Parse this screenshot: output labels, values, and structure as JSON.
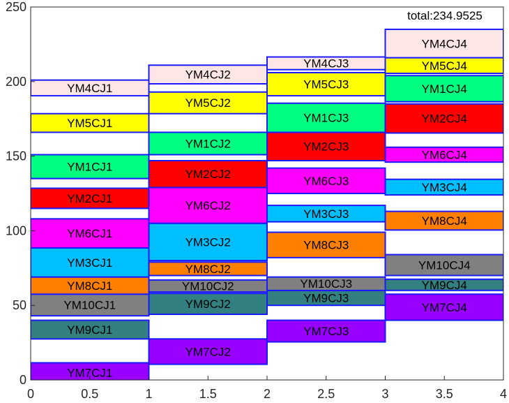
{
  "chart_data": {
    "type": "bar",
    "title": "",
    "xlabel": "",
    "ylabel": "",
    "xlim": [
      0,
      4
    ],
    "ylim": [
      0,
      250
    ],
    "xticks": [
      "0",
      "0.5",
      "1",
      "1.5",
      "2",
      "2.5",
      "3",
      "3.5",
      "4"
    ],
    "yticks": [
      "0",
      "50",
      "100",
      "150",
      "200",
      "250"
    ],
    "grid": false,
    "annotation": "total:234.9525",
    "colors": {
      "YM1": "#00ff80",
      "YM2": "#ff0000",
      "YM3": "#00bfff",
      "YM4": "#ffe6e6",
      "YM5": "#ffff00",
      "YM6": "#ff00ff",
      "YM7": "#9900ff",
      "YM8": "#ff8000",
      "YM9": "#338080",
      "YM10": "#808080",
      "edge": "#1a1aff"
    },
    "blocks": [
      {
        "label": "YM7CJ1",
        "key": "YM7",
        "x": [
          0,
          1
        ],
        "y": [
          -1.5,
          11.5
        ]
      },
      {
        "label": "YM9CJ1",
        "key": "YM9",
        "x": [
          0,
          1
        ],
        "y": [
          27.5,
          40
        ]
      },
      {
        "label": "YM10CJ1",
        "key": "YM10",
        "x": [
          0,
          1
        ],
        "y": [
          43,
          57.5
        ]
      },
      {
        "label": "YM8CJ1",
        "key": "YM8",
        "x": [
          0,
          1
        ],
        "y": [
          57.5,
          69
        ]
      },
      {
        "label": "YM3CJ1",
        "key": "YM3",
        "x": [
          0,
          1
        ],
        "y": [
          69,
          88.5
        ]
      },
      {
        "label": "YM6CJ1",
        "key": "YM6",
        "x": [
          0,
          1
        ],
        "y": [
          88.5,
          108
        ]
      },
      {
        "label": "YM2CJ1",
        "key": "YM2",
        "x": [
          0,
          1
        ],
        "y": [
          115,
          128.5
        ]
      },
      {
        "label": "YM1CJ1",
        "key": "YM1",
        "x": [
          0,
          1
        ],
        "y": [
          135,
          151
        ]
      },
      {
        "label": "YM5CJ1",
        "key": "YM5",
        "x": [
          0,
          1
        ],
        "y": [
          166,
          178.5
        ]
      },
      {
        "label": "YM4CJ1",
        "key": "YM4",
        "x": [
          0,
          1
        ],
        "y": [
          190.5,
          201
        ]
      },
      {
        "label": "YM7CJ2",
        "key": "YM7",
        "x": [
          1,
          2
        ],
        "y": [
          10.5,
          27.5
        ]
      },
      {
        "label": "YM9CJ2",
        "key": "YM9",
        "x": [
          1,
          2
        ],
        "y": [
          44,
          58
        ]
      },
      {
        "label": "YM10CJ2",
        "key": "YM10",
        "x": [
          1,
          2
        ],
        "y": [
          59,
          67
        ]
      },
      {
        "label": "YM8CJ2",
        "key": "YM8",
        "x": [
          1,
          2
        ],
        "y": [
          70,
          79
        ]
      },
      {
        "label": "YM3CJ2",
        "key": "YM3",
        "x": [
          1,
          2
        ],
        "y": [
          80,
          105
        ]
      },
      {
        "label": "YM6CJ2",
        "key": "YM6",
        "x": [
          1,
          2
        ],
        "y": [
          105,
          129
        ]
      },
      {
        "label": "YM2CJ2",
        "key": "YM2",
        "x": [
          1,
          2
        ],
        "y": [
          129,
          147
        ]
      },
      {
        "label": "YM1CJ2",
        "key": "YM1",
        "x": [
          1,
          2
        ],
        "y": [
          151,
          166
        ]
      },
      {
        "label": "YM5CJ2",
        "key": "YM5",
        "x": [
          1,
          2
        ],
        "y": [
          178.5,
          193
        ]
      },
      {
        "label": "YM4CJ2",
        "key": "YM4",
        "x": [
          1,
          2
        ],
        "y": [
          198.5,
          211
        ]
      },
      {
        "label": "YM7CJ3",
        "key": "YM7",
        "x": [
          2,
          3
        ],
        "y": [
          25.5,
          40
        ]
      },
      {
        "label": "YM9CJ3",
        "key": "YM9",
        "x": [
          2,
          3
        ],
        "y": [
          50,
          60
        ]
      },
      {
        "label": "YM10CJ3",
        "key": "YM10",
        "x": [
          2,
          3
        ],
        "y": [
          60,
          69
        ]
      },
      {
        "label": "YM8CJ3",
        "key": "YM8",
        "x": [
          2,
          3
        ],
        "y": [
          82,
          99
        ]
      },
      {
        "label": "YM3CJ3",
        "key": "YM3",
        "x": [
          2,
          3
        ],
        "y": [
          106,
          117
        ]
      },
      {
        "label": "YM6CJ3",
        "key": "YM6",
        "x": [
          2,
          3
        ],
        "y": [
          125,
          142
        ]
      },
      {
        "label": "YM2CJ3",
        "key": "YM2",
        "x": [
          2,
          3
        ],
        "y": [
          147,
          166
        ]
      },
      {
        "label": "YM1CJ3",
        "key": "YM1",
        "x": [
          2,
          3
        ],
        "y": [
          166,
          185.5
        ]
      },
      {
        "label": "YM5CJ3",
        "key": "YM5",
        "x": [
          2,
          3
        ],
        "y": [
          190.5,
          206
        ]
      },
      {
        "label": "YM4CJ3",
        "key": "YM4",
        "x": [
          2,
          3
        ],
        "y": [
          208,
          216.5
        ]
      },
      {
        "label": "YM7CJ4",
        "key": "YM7",
        "x": [
          3,
          4
        ],
        "y": [
          40,
          57.5
        ]
      },
      {
        "label": "YM9CJ4",
        "key": "YM9",
        "x": [
          3,
          4
        ],
        "y": [
          60,
          67.5
        ]
      },
      {
        "label": "YM10CJ4",
        "key": "YM10",
        "x": [
          3,
          4
        ],
        "y": [
          70,
          84
        ]
      },
      {
        "label": "YM8CJ4",
        "key": "YM8",
        "x": [
          3,
          4
        ],
        "y": [
          100.5,
          113
        ]
      },
      {
        "label": "YM3CJ4",
        "key": "YM3",
        "x": [
          3,
          4
        ],
        "y": [
          124,
          134.5
        ]
      },
      {
        "label": "YM6CJ4",
        "key": "YM6",
        "x": [
          3,
          4
        ],
        "y": [
          146,
          156
        ]
      },
      {
        "label": "YM2CJ4",
        "key": "YM2",
        "x": [
          3,
          4
        ],
        "y": [
          165.5,
          185
        ]
      },
      {
        "label": "YM1CJ4",
        "key": "YM1",
        "x": [
          3,
          4
        ],
        "y": [
          186.5,
          204
        ]
      },
      {
        "label": "YM5CJ4",
        "key": "YM5",
        "x": [
          3,
          4
        ],
        "y": [
          205.5,
          216
        ]
      },
      {
        "label": "YM4CJ4",
        "key": "YM4",
        "x": [
          3,
          4
        ],
        "y": [
          216,
          235
        ]
      }
    ]
  }
}
